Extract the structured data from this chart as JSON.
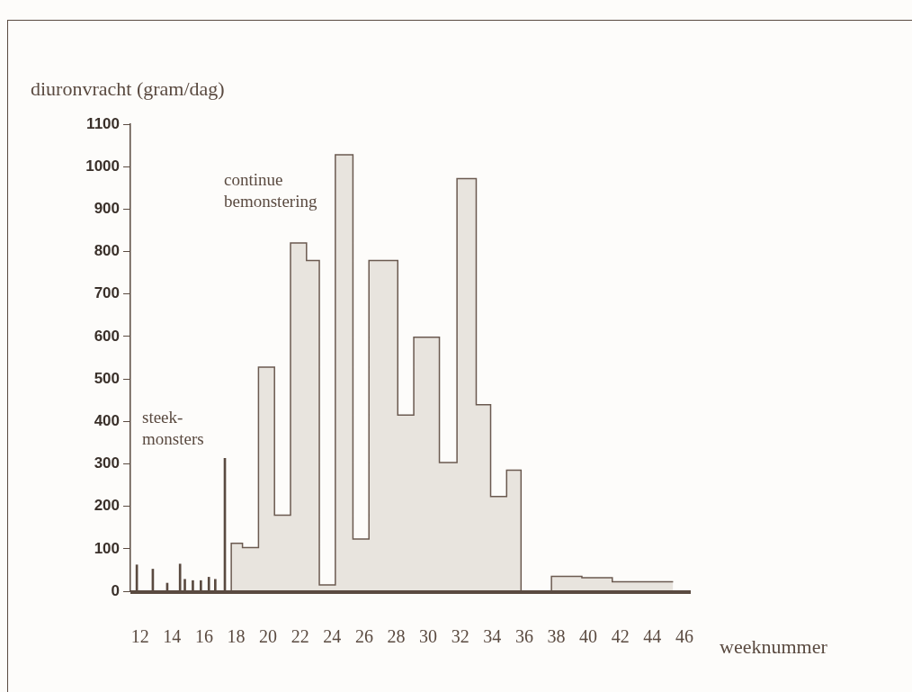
{
  "chart_data": {
    "type": "step",
    "xlabel": "weeknummer",
    "ylabel": "diuronvracht (gram/dag)",
    "series": [
      {
        "type": "bar",
        "color": "#5a4a40",
        "x": [
          11.8,
          12.8,
          13.7,
          14.5,
          14.8,
          15.3,
          15.8,
          16.3,
          16.7,
          17.3
        ],
        "values": [
          62,
          52,
          19,
          64,
          28,
          25,
          25,
          33,
          28,
          313
        ]
      },
      {
        "color": "#6b5a50",
        "x": [
          17.7,
          17.7,
          18.4,
          19.4,
          20.4,
          21.4,
          22.4,
          23.2,
          24.2,
          25.3,
          26.3,
          28.1,
          29.1,
          30.7,
          31.8,
          33.0,
          33.9,
          34.9,
          35.8,
          37.7,
          39.6,
          41.5,
          43.4,
          45.3
        ],
        "values": [
          0,
          90,
          113,
          103,
          528,
          179,
          820,
          779,
          15,
          1028,
          123,
          779,
          415,
          598,
          303,
          972,
          439,
          223,
          285,
          0,
          35,
          32,
          22,
          22
        ]
      }
    ],
    "xlim": [
      11.4,
      46.4
    ],
    "xticks": [
      12,
      14,
      16,
      18,
      20,
      22,
      24,
      26,
      28,
      30,
      32,
      34,
      36,
      38,
      40,
      42,
      44,
      46
    ],
    "ylim": [
      0,
      1100
    ],
    "yticks": [
      0,
      100,
      200,
      300,
      400,
      500,
      600,
      700,
      800,
      900,
      1000,
      1100
    ],
    "grid": false,
    "legend": false,
    "annotations": [
      "steek-\nmonsters",
      "continue\nbemonstering"
    ]
  }
}
